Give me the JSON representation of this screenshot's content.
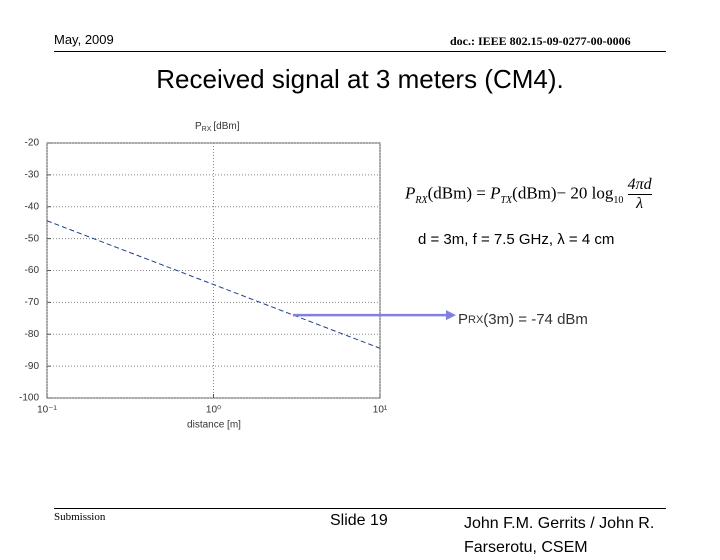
{
  "header": {
    "date": "May, 2009",
    "doc": "doc.: IEEE 802.15-09-0277-00-0006"
  },
  "title": "Received signal at 3 meters (CM4).",
  "chart_data": {
    "type": "line",
    "ylabel": {
      "symbol": "P",
      "subscript": "RX",
      "unit": "[dBm]"
    },
    "xlabel": "distance [m]",
    "x": [
      0.1,
      1,
      10
    ],
    "series": [
      {
        "name": "PRX",
        "color": "#1f3f8f",
        "values": [
          -44.4,
          -64.4,
          -84.4
        ]
      }
    ],
    "xlim": [
      0.1,
      10
    ],
    "xlog": true,
    "xticks": [
      {
        "value": 0.1,
        "label": "10⁻¹"
      },
      {
        "value": 1,
        "label": "10⁰"
      },
      {
        "value": 10,
        "label": "10¹"
      }
    ],
    "ylim": [
      -100,
      -20
    ],
    "yticks": [
      -20,
      -30,
      -40,
      -50,
      -60,
      -70,
      -80,
      -90,
      -100
    ],
    "grid": true,
    "annotations": [
      {
        "x": 3,
        "y": -74,
        "color": "#8080e0",
        "symbol": "P",
        "subscript": "RX",
        "text": "(3m) = -74 dBm"
      }
    ]
  },
  "formula": {
    "lhs": "P",
    "lhs_sub": "RX",
    "lhs_unit": "(dBm)",
    "eq": "=",
    "rhs": "P",
    "rhs_sub": "TX",
    "rhs_unit": "(dBm)",
    "minus": "− 20 log",
    "log_base": "10",
    "numerator": "4πd",
    "denominator": "λ"
  },
  "parameters": "d = 3m, f = 7.5 GHz,  λ = 4 cm",
  "footer": {
    "left": "Submission",
    "center": "Slide 19",
    "right": "John F.M. Gerrits / John R. Farserotu, CSEM"
  }
}
